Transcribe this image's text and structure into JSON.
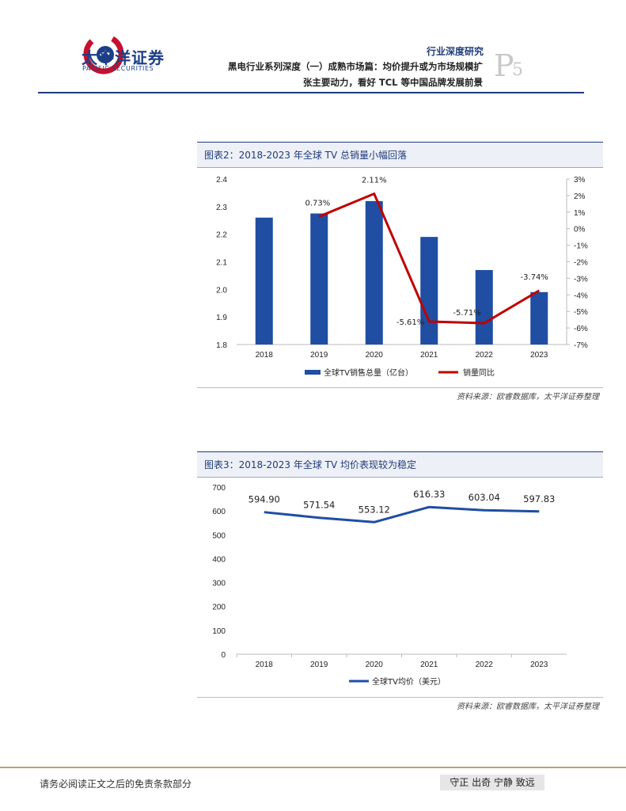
{
  "header": {
    "brand_cn": "太平洋证券",
    "brand_en": "PACIFIC SECURITIES",
    "report_type": "行业深度研究",
    "page_letter": "P",
    "page_number": "5",
    "title_line1": "黑电行业系列深度（一）成熟市场篇：均价提升或为市场规模扩",
    "title_line2": "张主要动力，看好 TCL 等中国品牌发展前景"
  },
  "figures": [
    {
      "title": "图表2：2018-2023 年全球 TV 总销量小幅回落",
      "source": "资料来源：欧睿数据库，太平洋证券整理"
    },
    {
      "title": "图表3：2018-2023 年全球 TV 均价表现较为稳定",
      "source": "资料来源：欧睿数据库，太平洋证券整理"
    }
  ],
  "chart_data": [
    {
      "type": "bar",
      "categories": [
        "2018",
        "2019",
        "2020",
        "2021",
        "2022",
        "2023"
      ],
      "series": [
        {
          "name": "全球TV销售总量（亿台）",
          "type": "bar",
          "axis": "left",
          "color": "#1f4ea3",
          "values": [
            2.26,
            2.275,
            2.32,
            2.19,
            2.07,
            1.99
          ]
        },
        {
          "name": "销量同比",
          "type": "line",
          "axis": "right",
          "color": "#c00000",
          "values": [
            null,
            0.73,
            2.11,
            -5.61,
            -5.71,
            -3.74
          ]
        }
      ],
      "line_labels": [
        "",
        "0.73%",
        "2.11%",
        "-5.61%",
        "-5.71%",
        "-3.74%"
      ],
      "left_ticks": [
        "2.4",
        "2.3",
        "2.2",
        "2.1",
        "2.0",
        "1.9",
        "1.8"
      ],
      "right_ticks": [
        "3%",
        "2%",
        "1%",
        "0%",
        "-1%",
        "-2%",
        "-3%",
        "-4%",
        "-5%",
        "-6%",
        "-7%"
      ],
      "ylim_left": [
        1.8,
        2.4
      ],
      "ylim_right": [
        -7,
        3
      ],
      "legend": "bottom"
    },
    {
      "type": "line",
      "categories": [
        "2018",
        "2019",
        "2020",
        "2021",
        "2022",
        "2023"
      ],
      "series": [
        {
          "name": "全球TV均价（美元）",
          "color": "#1f4ea3",
          "values": [
            594.9,
            571.54,
            553.12,
            616.33,
            603.04,
            597.83
          ]
        }
      ],
      "data_labels": [
        "594.90",
        "571.54",
        "553.12",
        "616.33",
        "603.04",
        "597.83"
      ],
      "y_ticks": [
        "700",
        "600",
        "500",
        "400",
        "300",
        "200",
        "100",
        "0"
      ],
      "ylim": [
        0,
        700
      ],
      "legend": "bottom"
    }
  ],
  "footer": {
    "disclaimer": "请务必阅读正文之后的免责条款部分",
    "motto": "守正 出奇 宁静 致远"
  }
}
